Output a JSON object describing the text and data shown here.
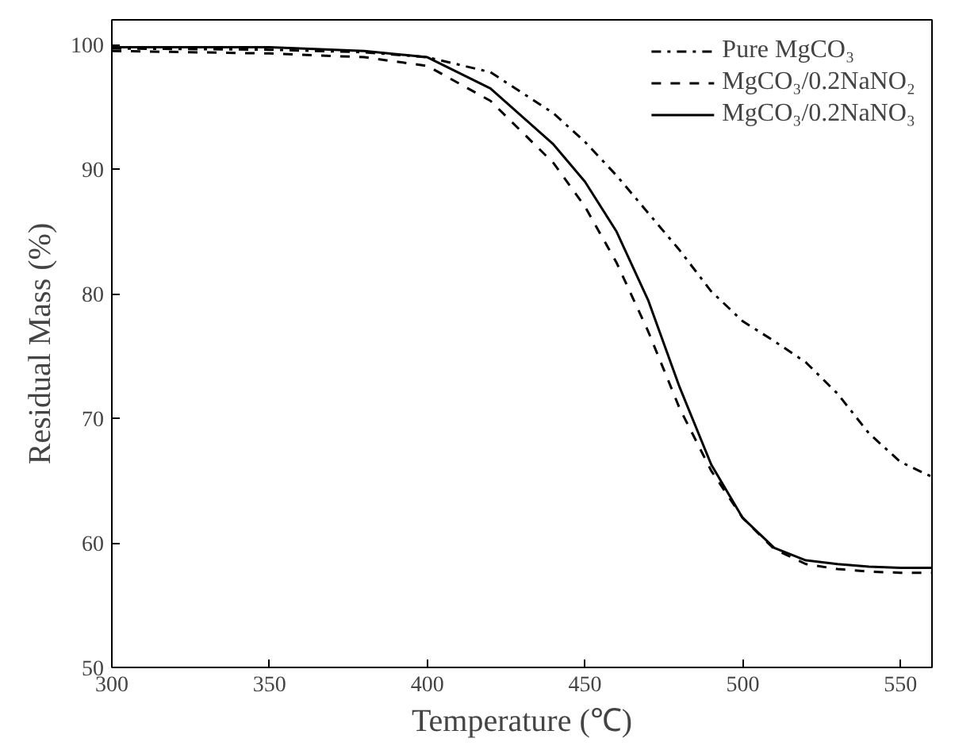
{
  "chart_data": {
    "type": "line",
    "xlabel": "Temperature (℃)",
    "ylabel": "Residual Mass (%)",
    "x": [
      300,
      350,
      380,
      400,
      420,
      440,
      450,
      460,
      470,
      480,
      490,
      500,
      510,
      520,
      530,
      540,
      550,
      560
    ],
    "series": [
      {
        "name": "Pure MgCO₃",
        "color": "#000000",
        "line_style": "dashdot",
        "values": [
          99.7,
          99.6,
          99.4,
          99.0,
          97.8,
          94.5,
          92.2,
          89.5,
          86.5,
          83.5,
          80.2,
          77.8,
          76.2,
          74.5,
          72.0,
          68.8,
          66.5,
          65.3
        ]
      },
      {
        "name": "MgCO₃/0.2NaNO₂",
        "color": "#000000",
        "line_style": "dashed",
        "values": [
          99.5,
          99.3,
          99.0,
          98.3,
          95.5,
          90.5,
          87.0,
          82.5,
          77.0,
          70.8,
          65.8,
          62.0,
          59.5,
          58.3,
          57.9,
          57.7,
          57.6,
          57.6
        ]
      },
      {
        "name": "MgCO₃/0.2NaNO₃",
        "color": "#000000",
        "line_style": "solid",
        "values": [
          99.8,
          99.8,
          99.5,
          99.0,
          96.5,
          92.0,
          89.0,
          85.0,
          79.5,
          72.5,
          66.3,
          62.0,
          59.6,
          58.6,
          58.3,
          58.1,
          58.0,
          58.0
        ]
      }
    ],
    "xlim": [
      300,
      560
    ],
    "ylim": [
      50,
      102
    ],
    "xticks": [
      300,
      350,
      400,
      450,
      500,
      550
    ],
    "yticks": [
      50,
      60,
      70,
      80,
      90,
      100
    ],
    "grid": false,
    "legend": "top right",
    "marker": "none"
  }
}
